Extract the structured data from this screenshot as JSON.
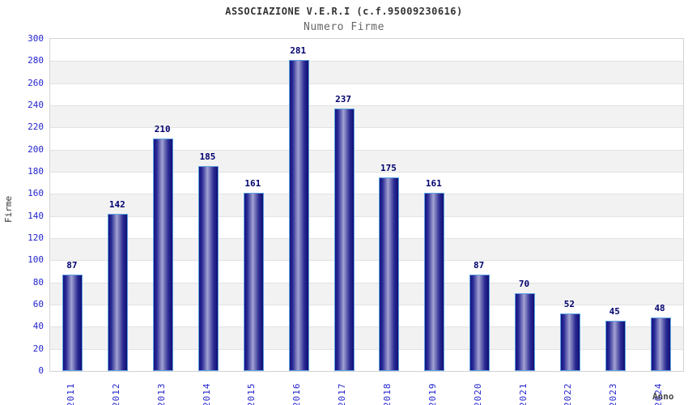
{
  "chart": {
    "title": "ASSOCIAZIONE V.E.R.I (c.f.95009230616)",
    "subtitle": "Numero Firme",
    "xlabel": "Anno",
    "ylabel": "Firme"
  },
  "chart_data": {
    "type": "bar",
    "title": "ASSOCIAZIONE V.E.R.I (c.f.95009230616)",
    "subtitle": "Numero Firme",
    "xlabel": "Anno",
    "ylabel": "Firme",
    "categories": [
      "2011",
      "2012",
      "2013",
      "2014",
      "2015",
      "2016",
      "2017",
      "2018",
      "2019",
      "2020",
      "2021",
      "2022",
      "2023",
      "2024"
    ],
    "values": [
      87,
      142,
      210,
      185,
      161,
      281,
      237,
      175,
      161,
      87,
      70,
      52,
      45,
      48
    ],
    "ylim": [
      0,
      300
    ],
    "ytick_step": 20,
    "grid": "horizontal alternating bands",
    "legend": false,
    "colors": {
      "tick_label": "#2424cf",
      "value_label": "#00006e",
      "bar_dark": "#131380",
      "bar_light": "#a3a3d3",
      "bar_border": "#5ea2e2",
      "band_gray": "#f2f2f2",
      "band_white": "#ffffff",
      "gridline": "#e2e2e2",
      "plot_border": "#d3d3d3",
      "title": "#333333",
      "subtitle": "#666666",
      "axis_title": "#444444"
    }
  }
}
